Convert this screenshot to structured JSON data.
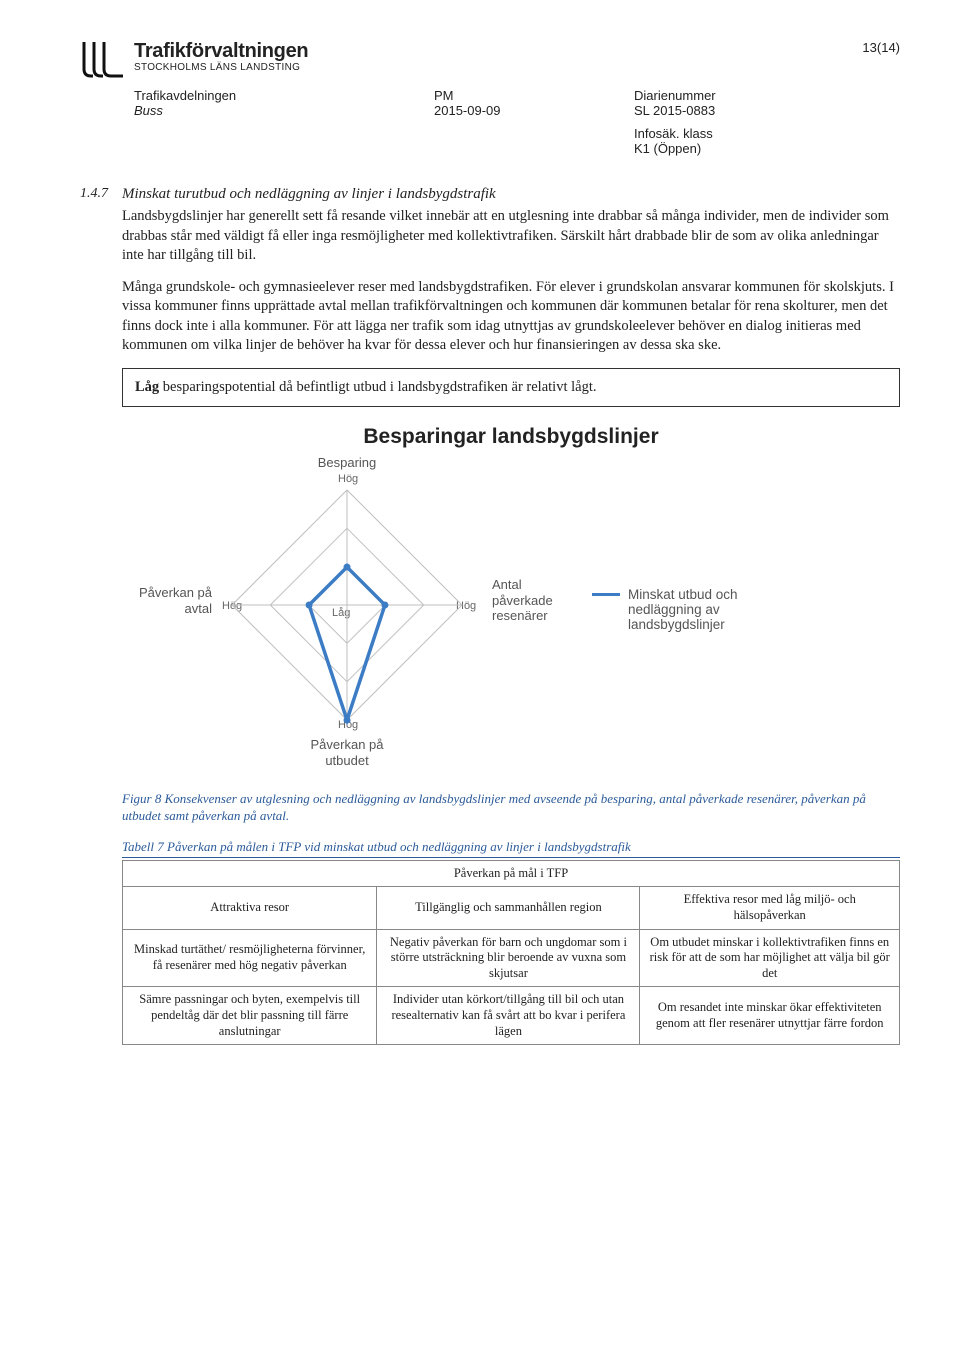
{
  "header": {
    "org_name": "Trafikförvaltningen",
    "org_sub": "STOCKHOLMS LÄNS LANDSTING",
    "page_number": "13(14)"
  },
  "meta": {
    "department": "Trafikavdelningen",
    "subject": "Buss",
    "doc_type": "PM",
    "date": "2015-09-09",
    "diary_label": "Diarienummer",
    "diary_number": "SL 2015-0883",
    "infosec_label": "Infosäk. klass",
    "infosec_value": "K1 (Öppen)"
  },
  "section": {
    "number": "1.4.7",
    "title": "Minskat turutbud och nedläggning av linjer i landsbygdstrafik",
    "p1": "Landsbygdslinjer har generellt sett få resande vilket innebär att en utglesning inte drabbar så många individer, men de individer som drabbas står med väldigt få eller inga resmöjligheter med kollektivtrafiken. Särskilt hårt drabbade blir de som av olika anledningar inte har tillgång till bil.",
    "p2": "Många grundskole- och gymnasieelever reser med landsbygdstrafiken. För elever i grundskolan ansvarar kommunen för skolskjuts. I vissa kommuner finns upprättade avtal mellan trafikförvaltningen och kommunen där kommunen betalar för rena skolturer, men det finns dock inte i alla kommuner. För att lägga ner trafik som idag utnyttjas av grundskoleelever behöver en dialog initieras med kommunen om vilka linjer de behöver ha kvar för dessa elever och hur finansieringen av dessa ska ske."
  },
  "callout": {
    "bold": "Låg",
    "text": " besparingspotential då befintligt utbud i landsbygdstrafiken är relativt lågt."
  },
  "chart": {
    "title": "Besparingar landsbygdslinjer",
    "axis_top": "Besparing",
    "axis_right_l1": "Antal",
    "axis_right_l2": "påverkade",
    "axis_right_l3": "resenärer",
    "axis_bottom_l1": "Påverkan på",
    "axis_bottom_l2": "utbudet",
    "axis_left_l1": "Påverkan på",
    "axis_left_l2": "avtal",
    "scale_high": "Hög",
    "scale_low": "Låg",
    "legend_l1": "Minskat utbud och",
    "legend_l2": "nedläggning av",
    "legend_l3": "landsbygdslinjer",
    "series_color": "#3b7cc4",
    "grid_color": "#bfbfbf",
    "values": {
      "top": 0.33,
      "right": 0.33,
      "bottom": 1.0,
      "left": 0.33
    }
  },
  "figure_caption": "Figur 8 Konsekvenser av utglesning och nedläggning av landsbygdslinjer med avseende på besparing, antal påverkade resenärer, påverkan på utbudet samt påverkan på avtal.",
  "table_caption": "Tabell 7 Påverkan på målen i TFP vid minskat utbud och nedläggning av linjer i landsbygdstrafik",
  "table": {
    "super_header": "Påverkan på mål i TFP",
    "columns": [
      "Attraktiva resor",
      "Tillgänglig och sammanhållen region",
      "Effektiva resor med låg miljö- och hälsopåverkan"
    ],
    "rows": [
      [
        "Minskad turtäthet/ resmöjligheterna förvinner, få resenärer med hög negativ påverkan",
        "Negativ påverkan för barn och ungdomar som i större utsträckning blir beroende av vuxna som skjutsar",
        "Om utbudet minskar i kollektivtrafiken finns en risk för att de som har möjlighet att välja bil gör det"
      ],
      [
        "Sämre passningar och byten, exempelvis till pendeltåg där det blir passning till färre anslutningar",
        "Individer utan körkort/tillgång till bil och utan resealternativ kan få svårt att bo kvar i perifera lägen",
        "Om resandet inte minskar ökar effektiviteten genom att fler resenärer utnyttjar färre fordon"
      ]
    ]
  }
}
